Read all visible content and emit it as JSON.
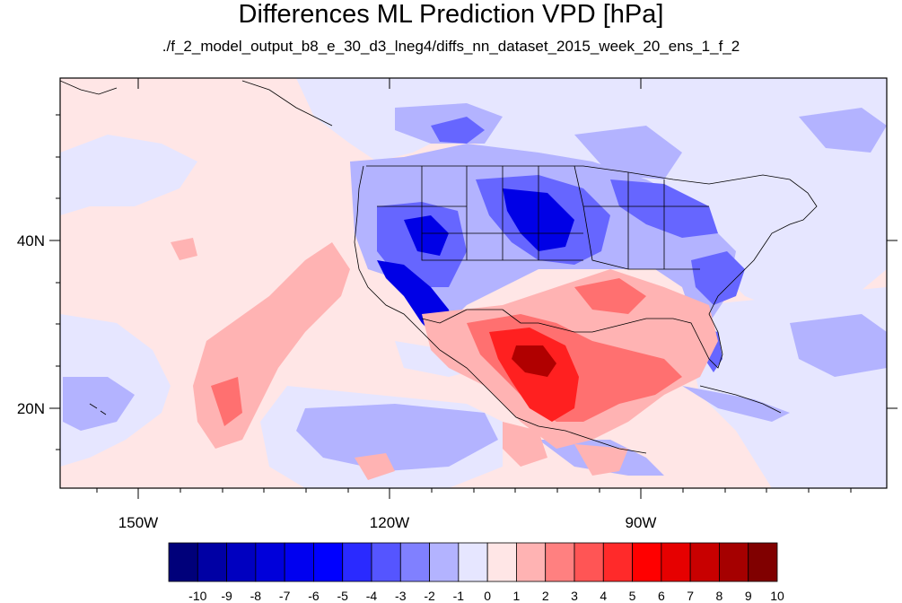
{
  "title": "Differences ML Prediction VPD [hPa]",
  "subtitle": "./f_2_model_output_b8_e_30_d3_lneg4/diffs_nn_dataset_2015_week_20_ens_1_f_2",
  "map": {
    "lon_labels": [
      "150W",
      "120W",
      "90W"
    ],
    "lat_labels": [
      "40N",
      "20N"
    ]
  },
  "colorbar": {
    "labels": [
      "-10",
      "-9",
      "-8",
      "-7",
      "-6",
      "-5",
      "-4",
      "-3",
      "-2",
      "-1",
      "0",
      "1",
      "2",
      "3",
      "4",
      "5",
      "6",
      "7",
      "8",
      "9",
      "10"
    ],
    "colors": [
      "#00007a",
      "#0000a4",
      "#0000c0",
      "#0000da",
      "#0000f0",
      "#0000ff",
      "#2a2aff",
      "#5555ff",
      "#8080ff",
      "#b3b3ff",
      "#e6e6ff",
      "#ffe6e6",
      "#ffb3b3",
      "#ff8080",
      "#ff5555",
      "#ff2a2a",
      "#ff0000",
      "#e60000",
      "#c80000",
      "#a50000",
      "#800000"
    ]
  }
}
